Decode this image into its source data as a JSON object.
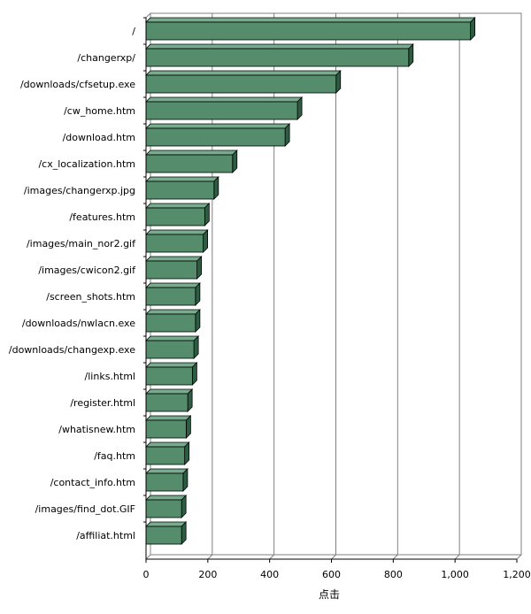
{
  "chart_data": {
    "type": "bar",
    "orientation": "horizontal",
    "style": "3d",
    "categories": [
      "/",
      "/changerxp/",
      "/downloads/cfsetup.exe",
      "/cw_home.htm",
      "/download.htm",
      "/cx_localization.htm",
      "/images/changerxp.jpg",
      "/features.htm",
      "/images/main_nor2.gif",
      "/images/cwicon2.gif",
      "/screen_shots.htm",
      "/downloads/nwlacn.exe",
      "/downloads/changexp.exe",
      "/links.html",
      "/register.html",
      "/whatisnew.htm",
      "/faq.htm",
      "/contact_info.htm",
      "/images/find_dot.GIF",
      "/affiliat.html"
    ],
    "values": [
      1050,
      850,
      615,
      490,
      450,
      280,
      220,
      190,
      185,
      165,
      160,
      160,
      155,
      150,
      135,
      130,
      125,
      120,
      115,
      115
    ],
    "xlabel": "点击",
    "ylabel": "",
    "xlim": [
      0,
      1200
    ],
    "xticks": [
      0,
      200,
      400,
      600,
      800,
      1000,
      1200
    ],
    "xtick_labels": [
      "0",
      "200",
      "400",
      "600",
      "800",
      "1,000",
      "1,200"
    ],
    "grid": "vertical",
    "colors": {
      "bar_front": "#548c6c",
      "bar_top": "#76ad8d",
      "bar_side": "#2e5c42",
      "bar_edge": "#000000",
      "grid": "#808080"
    }
  }
}
